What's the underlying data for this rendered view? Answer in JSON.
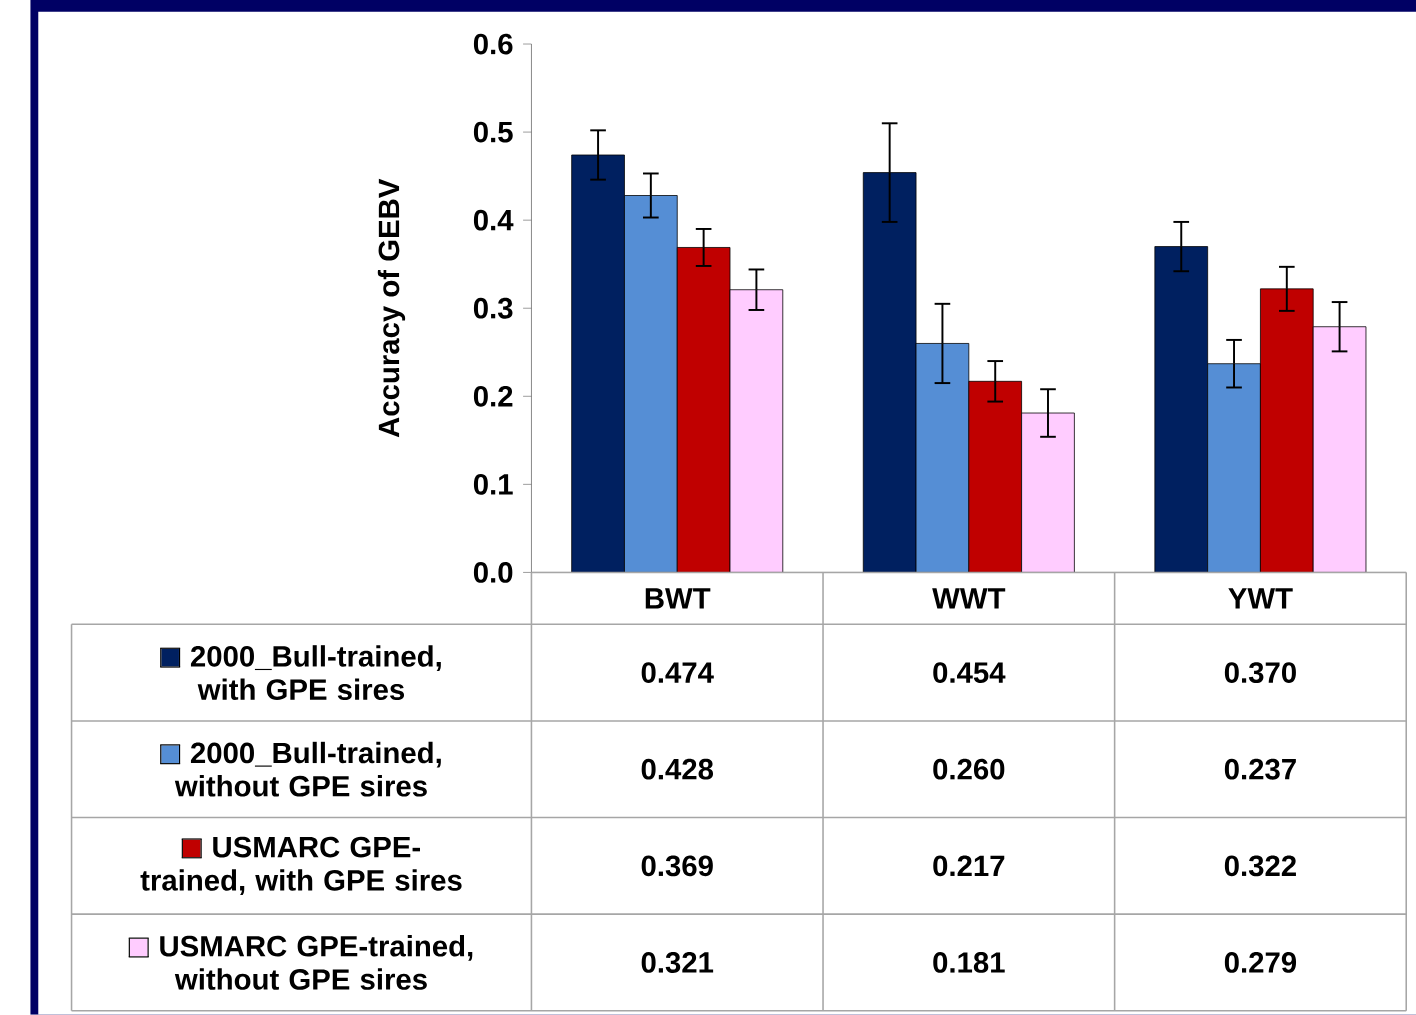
{
  "chart_data": {
    "type": "bar",
    "ylabel": "Accuracy of GEBV",
    "categories": [
      "BWT",
      "WWT",
      "YWT"
    ],
    "ylim": [
      0,
      0.6
    ],
    "yticks": [
      {
        "value": 0,
        "label": "0.0"
      },
      0.1,
      0.2,
      0.3,
      0.4,
      0.5,
      0.6
    ],
    "legend": "bottom",
    "grid": false,
    "series": [
      {
        "name": "2000_Bull-trained, with GPE sires",
        "color": "#002060",
        "values": [
          0.474,
          0.454,
          0.37
        ],
        "value_labels": [
          "0.474",
          "0.454",
          "0.370"
        ],
        "errors": [
          0.028,
          0.056,
          0.028
        ]
      },
      {
        "name": "2000_Bull-trained, without GPE sires",
        "color": "#558ed5",
        "values": [
          0.428,
          0.26,
          0.237
        ],
        "value_labels": [
          "0.428",
          "0.260",
          "0.237"
        ],
        "errors": [
          0.025,
          0.045,
          0.027
        ]
      },
      {
        "name": "USMARC GPE-trained, with GPE sires",
        "color": "#c00000",
        "values": [
          0.369,
          0.217,
          0.322
        ],
        "value_labels": [
          "0.369",
          "0.217",
          "0.322"
        ],
        "errors": [
          0.021,
          0.023,
          0.025
        ]
      },
      {
        "name": "USMARC GPE-trained, without GPE sires",
        "color": "#ffccff",
        "values": [
          0.321,
          0.181,
          0.279
        ],
        "value_labels": [
          "0.321",
          "0.181",
          "0.279"
        ],
        "errors": [
          0.023,
          0.027,
          0.028
        ]
      }
    ]
  }
}
